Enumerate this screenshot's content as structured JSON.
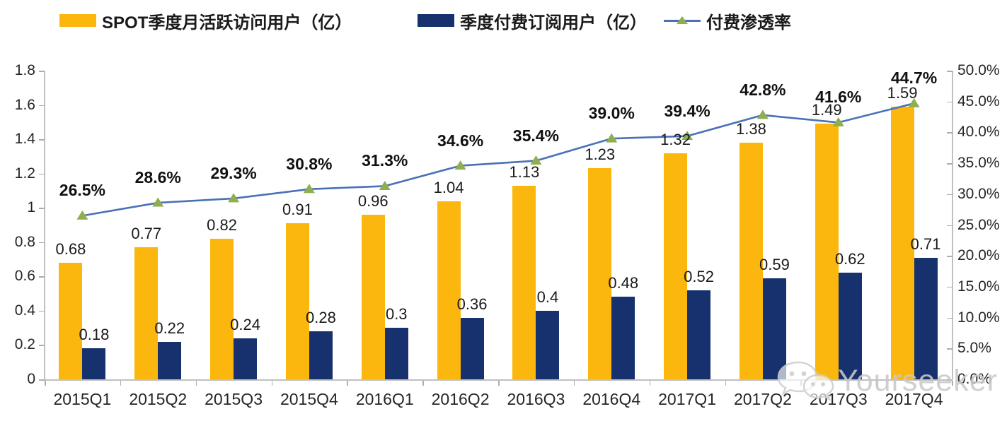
{
  "legend": {
    "items": [
      {
        "label": "SPOT季度月活跃访问用户（亿）",
        "swatch": "yellow-bar-swatch"
      },
      {
        "label": "季度付费订阅用户（亿）",
        "swatch": "navy-bar-swatch"
      },
      {
        "label": "付费渗透率",
        "swatch": "line-marker-swatch"
      }
    ]
  },
  "colors": {
    "mau_bar": "#FBB70E",
    "subscriber_bar": "#16316D",
    "penetration_line": "#4A71B8",
    "marker_green": "#8FAE4E",
    "axis_line": "#C0C0C0",
    "watermark": "#C9C9C9"
  },
  "chart_data": {
    "type": "bar",
    "subtype": "combo-bar-line-dual-axis",
    "categories": [
      "2015Q1",
      "2015Q2",
      "2015Q3",
      "2015Q4",
      "2016Q1",
      "2016Q2",
      "2016Q3",
      "2016Q4",
      "2017Q1",
      "2017Q2",
      "2017Q3",
      "2017Q4"
    ],
    "series": [
      {
        "name": "SPOT季度月活跃访问用户（亿）",
        "type": "bar",
        "axis": "left",
        "color": "#FBB70E",
        "values": [
          0.68,
          0.77,
          0.82,
          0.91,
          0.96,
          1.04,
          1.13,
          1.23,
          1.32,
          1.38,
          1.49,
          1.59
        ],
        "labels": [
          "0.68",
          "0.77",
          "0.82",
          "0.91",
          "0.96",
          "1.04",
          "1.13",
          "1.23",
          "1.32",
          "1.38",
          "1.49",
          "1.59"
        ]
      },
      {
        "name": "季度付费订阅用户（亿）",
        "type": "bar",
        "axis": "left",
        "color": "#16316D",
        "values": [
          0.18,
          0.22,
          0.24,
          0.28,
          0.3,
          0.36,
          0.4,
          0.48,
          0.52,
          0.59,
          0.62,
          0.71
        ],
        "labels": [
          "0.18",
          "0.22",
          "0.24",
          "0.28",
          "0.3",
          "0.36",
          "0.4",
          "0.48",
          "0.52",
          "0.59",
          "0.62",
          "0.71"
        ]
      },
      {
        "name": "付费渗透率",
        "type": "line",
        "axis": "right",
        "color": "#4A71B8",
        "marker": "triangle",
        "marker_color": "#8FAE4E",
        "values": [
          26.5,
          28.6,
          29.3,
          30.8,
          31.3,
          34.6,
          35.4,
          39.0,
          39.4,
          42.8,
          41.6,
          44.7
        ],
        "labels": [
          "26.5%",
          "28.6%",
          "29.3%",
          "30.8%",
          "31.3%",
          "34.6%",
          "35.4%",
          "39.0%",
          "39.4%",
          "42.8%",
          "41.6%",
          "44.7%"
        ]
      }
    ],
    "left_axis": {
      "min": 0,
      "max": 1.8,
      "step": 0.2,
      "tick_labels": [
        "0",
        "0.2",
        "0.4",
        "0.6",
        "0.8",
        "1",
        "1.2",
        "1.4",
        "1.6",
        "1.8"
      ]
    },
    "right_axis": {
      "min": 0,
      "max": 50,
      "step": 5,
      "tick_labels": [
        "0.0%",
        "5.0%",
        "10.0%",
        "15.0%",
        "20.0%",
        "25.0%",
        "30.0%",
        "35.0%",
        "40.0%",
        "45.0%",
        "50.0%"
      ]
    },
    "grid": false,
    "legend_position": "top",
    "title": ""
  },
  "watermark": {
    "text": "Yourseeker",
    "icon": "wechat-icon"
  }
}
